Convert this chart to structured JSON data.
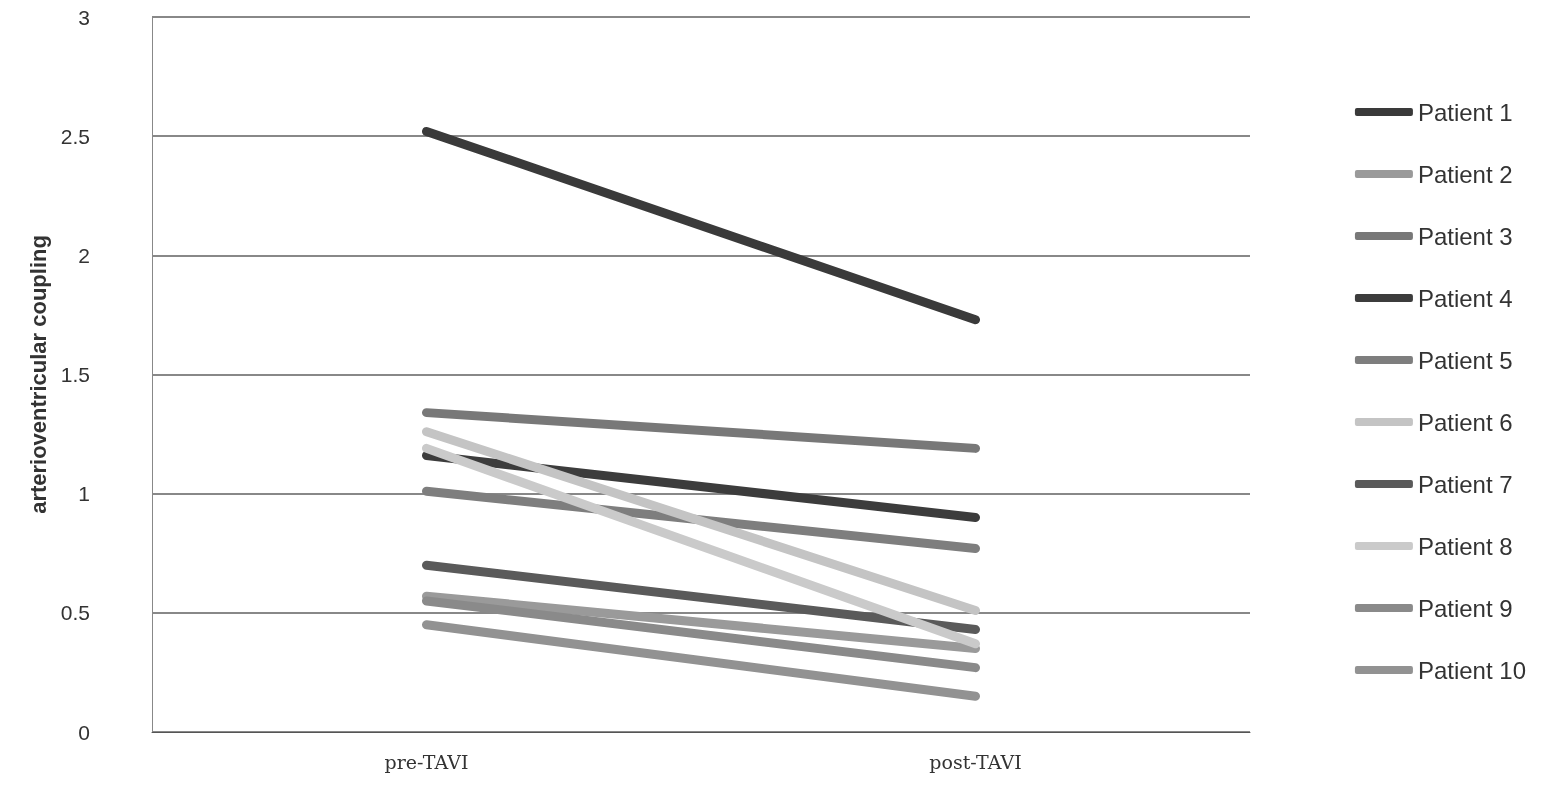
{
  "chart_data": {
    "type": "line",
    "ylabel": "arterioventricular coupling",
    "categories": [
      "pre-TAVI",
      "post-TAVI"
    ],
    "series": [
      {
        "name": "Patient 1",
        "color": "#3a3a3a",
        "values": [
          2.52,
          1.73
        ]
      },
      {
        "name": "Patient 2",
        "color": "#9a9a9a",
        "values": [
          0.57,
          0.35
        ]
      },
      {
        "name": "Patient 3",
        "color": "#787878",
        "values": [
          1.34,
          1.19
        ]
      },
      {
        "name": "Patient 4",
        "color": "#3c3c3c",
        "values": [
          1.16,
          0.9
        ]
      },
      {
        "name": "Patient 5",
        "color": "#7e7e7e",
        "values": [
          1.01,
          0.77
        ]
      },
      {
        "name": "Patient 6",
        "color": "#c4c4c4",
        "values": [
          1.26,
          0.51
        ]
      },
      {
        "name": "Patient 7",
        "color": "#5a5a5a",
        "values": [
          0.7,
          0.43
        ]
      },
      {
        "name": "Patient 8",
        "color": "#cacaca",
        "values": [
          1.19,
          0.37
        ]
      },
      {
        "name": "Patient 9",
        "color": "#8a8a8a",
        "values": [
          0.55,
          0.27
        ]
      },
      {
        "name": "Patient 10",
        "color": "#929292",
        "values": [
          0.45,
          0.15
        ]
      }
    ],
    "ylim": [
      0,
      3
    ],
    "yticks": [
      0,
      0.5,
      1,
      1.5,
      2,
      2.5,
      3
    ],
    "grid": "y",
    "legend": "right",
    "marker": "none",
    "line_style": "solid"
  }
}
